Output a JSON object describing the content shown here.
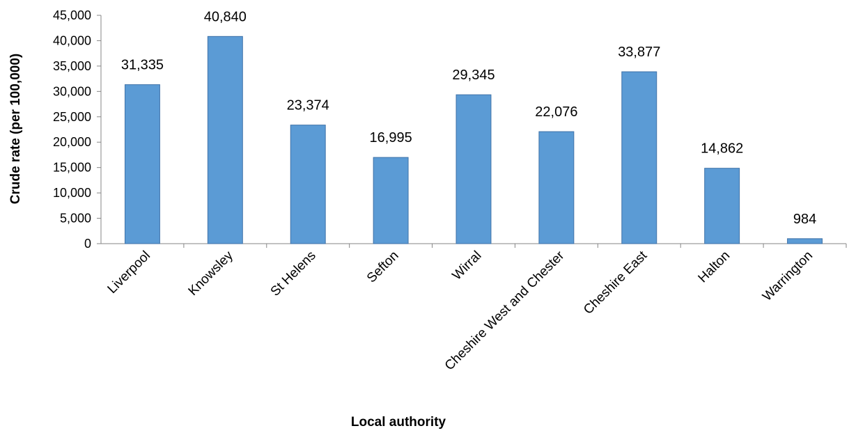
{
  "chart_data": {
    "type": "bar",
    "xlabel": "Local authority",
    "ylabel": "Crude rate (per 100,000)",
    "ylim": [
      0,
      45000
    ],
    "yticks": [
      0,
      5000,
      10000,
      15000,
      20000,
      25000,
      30000,
      35000,
      40000,
      45000
    ],
    "ytick_labels": [
      "0",
      "5,000",
      "10,000",
      "15,000",
      "20,000",
      "25,000",
      "30,000",
      "35,000",
      "40,000",
      "45,000"
    ],
    "categories": [
      "Liverpool",
      "Knowsley",
      "St Helens",
      "Sefton",
      "Wirral",
      "Cheshire West and Chester",
      "Cheshire East",
      "Halton",
      "Warrington"
    ],
    "values": [
      31335,
      40840,
      23374,
      16995,
      29345,
      22076,
      33877,
      14862,
      984
    ],
    "value_labels": [
      "31,335",
      "40,840",
      "23,374",
      "16,995",
      "29,345",
      "22,076",
      "33,877",
      "14,862",
      "984"
    ],
    "bar_color": "#5b9bd5",
    "bar_edge_color": "#3f72a8",
    "grid": false,
    "legend": "none"
  }
}
